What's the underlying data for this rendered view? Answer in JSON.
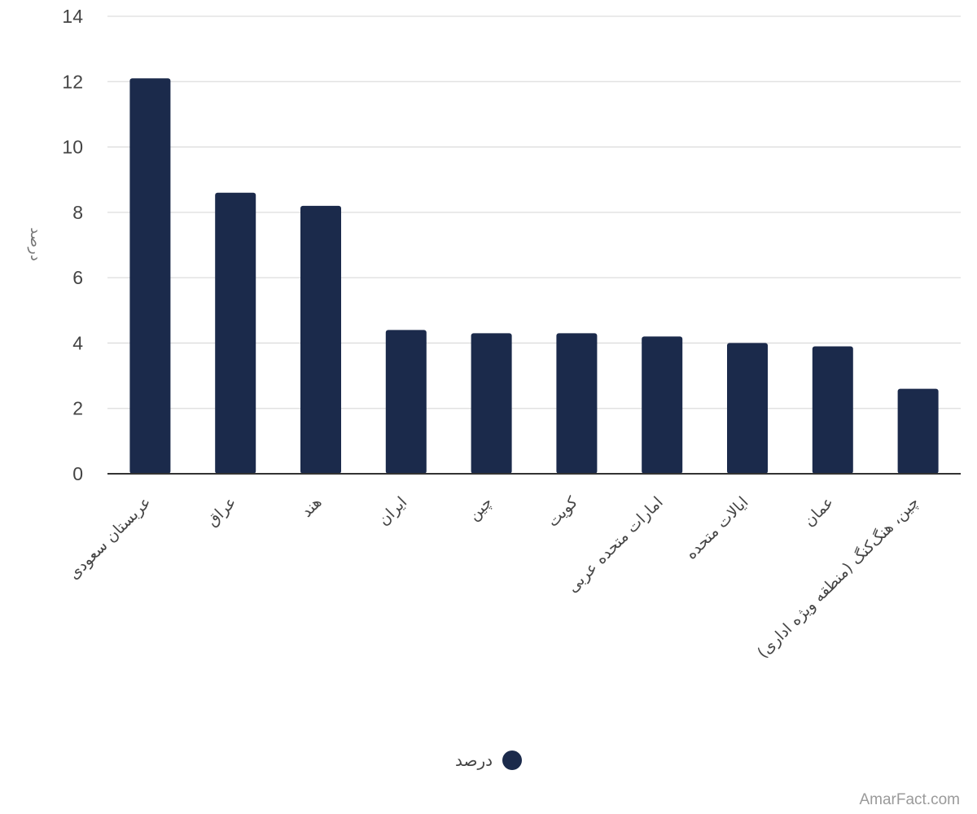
{
  "chart_data": {
    "type": "bar",
    "categories": [
      "عربستان سعودی",
      "عراق",
      "هند",
      "ایران",
      "چین",
      "کویت",
      "امارات متحده عربی",
      "ایالات متحده",
      "عمان",
      "چین، هنگ‌کنگ (منطقه ویژه اداری)"
    ],
    "series": [
      {
        "name": "درصد",
        "values": [
          12.1,
          8.6,
          8.2,
          4.4,
          4.3,
          4.3,
          4.2,
          4.0,
          3.9,
          2.6
        ]
      }
    ],
    "ylabel": "درصد",
    "xlabel": "",
    "ylim": [
      0,
      14
    ],
    "yticks": [
      0,
      2,
      4,
      6,
      8,
      10,
      12,
      14
    ],
    "grid": true,
    "legend_position": "bottom-center",
    "colors": {
      "bar": "#1b2a4b",
      "grid": "#dddddd",
      "axis": "#333333",
      "tick_text": "#444444"
    }
  },
  "legend": {
    "label": "درصد"
  },
  "watermark": "AmarFact.com"
}
